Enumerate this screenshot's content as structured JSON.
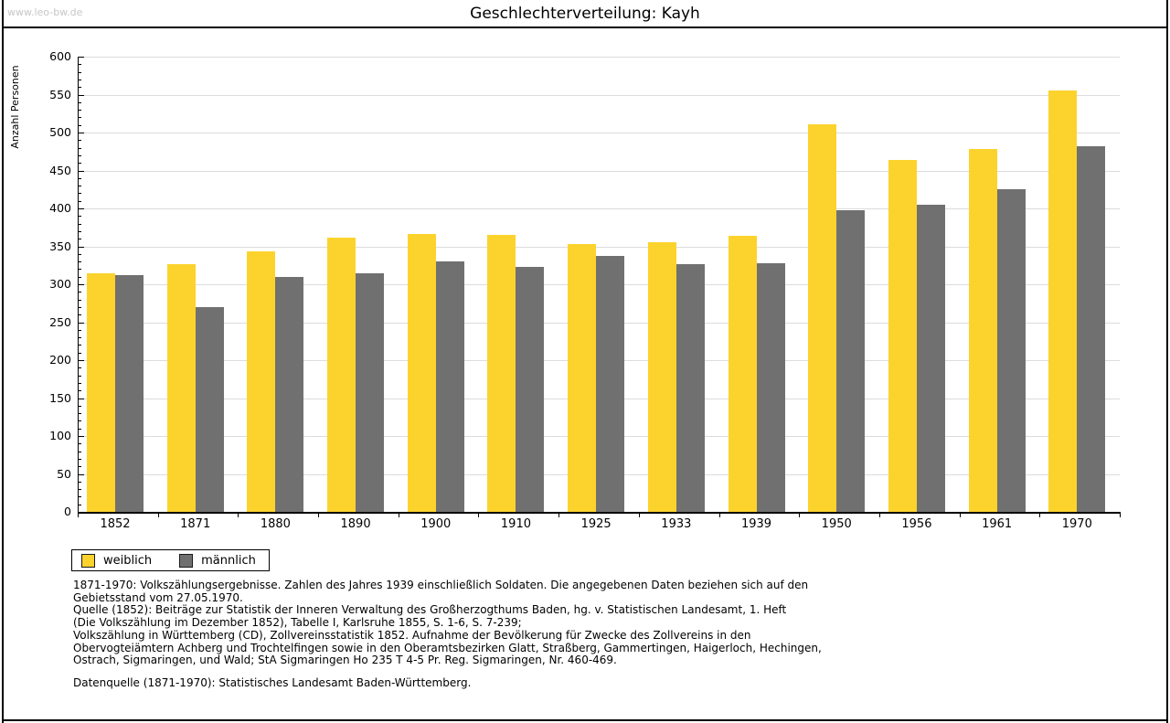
{
  "page": {
    "watermark": "www.leo-bw.de"
  },
  "chart_data": {
    "type": "bar",
    "title": "Geschlechterverteilung: Kayh",
    "xlabel": "",
    "ylabel": "Anzahl Personen",
    "ylim": [
      0,
      600
    ],
    "y_major_step": 50,
    "y_minor_step": 10,
    "grid": true,
    "legend_position": "bottom-left",
    "categories": [
      "1852",
      "1871",
      "1880",
      "1890",
      "1900",
      "1910",
      "1925",
      "1933",
      "1939",
      "1950",
      "1956",
      "1961",
      "1970"
    ],
    "series": [
      {
        "name": "weiblich",
        "color": "#fcd32d",
        "values": [
          314,
          326,
          343,
          362,
          366,
          365,
          353,
          355,
          364,
          511,
          464,
          478,
          555
        ]
      },
      {
        "name": "männlich",
        "color": "#707070",
        "values": [
          312,
          270,
          310,
          314,
          330,
          323,
          337,
          326,
          328,
          397,
          405,
          425,
          482
        ]
      }
    ]
  },
  "footnotes": {
    "lines": [
      "1871-1970: Volkszählungsergebnisse. Zahlen des Jahres 1939 einschließlich Soldaten. Die angegebenen Daten beziehen sich auf den",
      "Gebietsstand vom 27.05.1970.",
      "Quelle (1852): Beiträge zur Statistik der Inneren Verwaltung des Großherzogthums Baden, hg. v. Statistischen Landesamt, 1. Heft",
      "(Die Volkszählung im Dezember 1852), Tabelle I, Karlsruhe 1855, S. 1-6, S. 7-239;",
      "Volkszählung in Württemberg (CD), Zollvereinsstatistik 1852. Aufnahme der Bevölkerung für Zwecke des Zollvereins in den",
      "Obervogteiämtern Achberg und Trochtelfingen sowie in den Oberamtsbezirken Glatt, Straßberg, Gammertingen, Haigerloch, Hechingen,",
      "Ostrach, Sigmaringen, und Wald; StA Sigmaringen Ho 235 T 4-5 Pr. Reg. Sigmaringen, Nr. 460-469."
    ],
    "datasource": "Datenquelle (1871-1970): Statistisches Landesamt Baden-Württemberg."
  }
}
